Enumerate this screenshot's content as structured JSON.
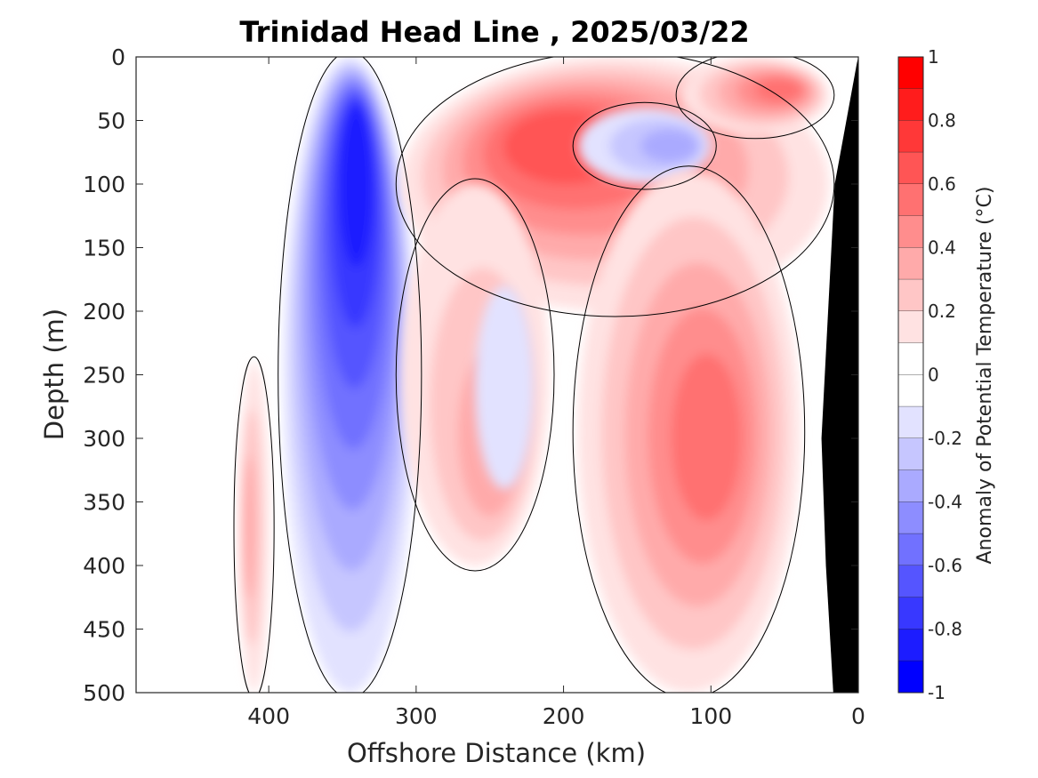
{
  "chart_data": {
    "type": "heatmap",
    "title": "Trinidad Head Line , 2025/03/22",
    "xlabel": "Offshore Distance (km)",
    "ylabel": "Depth (m)",
    "xlim": [
      490,
      0
    ],
    "ylim": [
      0,
      500
    ],
    "x_reversed": true,
    "y_reversed": true,
    "xticks": [
      400,
      300,
      200,
      100,
      0
    ],
    "yticks": [
      0,
      50,
      100,
      150,
      200,
      250,
      300,
      350,
      400,
      450,
      500
    ],
    "colorbar": {
      "label": "Anomaly of Potential Temperature (°C)",
      "range": [
        -1,
        1
      ],
      "ticks": [
        1,
        0.8,
        0.6,
        0.4,
        0.2,
        0,
        -0.2,
        -0.4,
        -0.6,
        -0.8,
        -1
      ],
      "tick_labels": [
        "1",
        "0.8",
        "0.6",
        "0.4",
        "0.2",
        "0",
        "-0.2",
        "-0.4",
        "-0.6",
        "-0.8",
        "-1"
      ],
      "levels": [
        {
          "min": 0.9,
          "max": 1.0,
          "color": "#ff0000"
        },
        {
          "min": 0.8,
          "max": 0.9,
          "color": "#ff1c1c"
        },
        {
          "min": 0.7,
          "max": 0.8,
          "color": "#ff3838"
        },
        {
          "min": 0.6,
          "max": 0.7,
          "color": "#ff5555"
        },
        {
          "min": 0.5,
          "max": 0.6,
          "color": "#ff7171"
        },
        {
          "min": 0.4,
          "max": 0.5,
          "color": "#ff8d8d"
        },
        {
          "min": 0.3,
          "max": 0.4,
          "color": "#ffaaaa"
        },
        {
          "min": 0.2,
          "max": 0.3,
          "color": "#ffc6c6"
        },
        {
          "min": 0.1,
          "max": 0.2,
          "color": "#ffe2e2"
        },
        {
          "min": 0.0,
          "max": 0.1,
          "color": "#ffffff"
        },
        {
          "min": -0.1,
          "max": 0.0,
          "color": "#ffffff"
        },
        {
          "min": -0.2,
          "max": -0.1,
          "color": "#e2e2ff"
        },
        {
          "min": -0.3,
          "max": -0.2,
          "color": "#c6c6ff"
        },
        {
          "min": -0.4,
          "max": -0.3,
          "color": "#aaaaff"
        },
        {
          "min": -0.5,
          "max": -0.4,
          "color": "#8d8dff"
        },
        {
          "min": -0.6,
          "max": -0.5,
          "color": "#7171ff"
        },
        {
          "min": -0.7,
          "max": -0.6,
          "color": "#5555ff"
        },
        {
          "min": -0.8,
          "max": -0.7,
          "color": "#3838ff"
        },
        {
          "min": -0.9,
          "max": -0.8,
          "color": "#1c1cff"
        },
        {
          "min": -1.0,
          "max": -0.9,
          "color": "#0000ff"
        }
      ]
    },
    "data_extent_km": [
      420,
      0
    ],
    "bathymetry_color": "#000000",
    "features": [
      {
        "name": "cold-core",
        "sign": "negative",
        "x_range_km": [
          300,
          390
        ],
        "depth_range_m": [
          0,
          500
        ],
        "peak_anomaly": -0.8,
        "peak_x_km": 340,
        "peak_depth_m": 80
      },
      {
        "name": "warm-upper-band",
        "sign": "positive",
        "x_range_km": [
          20,
          310
        ],
        "depth_range_m": [
          0,
          200
        ],
        "peak_anomaly": 0.6,
        "peak_x_km": 205,
        "peak_depth_m": 65
      },
      {
        "name": "warm-nearshore-surface",
        "sign": "positive",
        "x_range_km": [
          20,
          120
        ],
        "depth_range_m": [
          0,
          60
        ],
        "peak_anomaly": 0.5,
        "peak_x_km": 50,
        "peak_depth_m": 25
      },
      {
        "name": "cool-subsurface-lens",
        "sign": "negative",
        "x_range_km": [
          100,
          190
        ],
        "depth_range_m": [
          40,
          100
        ],
        "peak_anomaly": -0.3,
        "peak_x_km": 120,
        "peak_depth_m": 70
      },
      {
        "name": "warm-deep-core",
        "sign": "positive",
        "x_range_km": [
          40,
          190
        ],
        "depth_range_m": [
          90,
          500
        ],
        "peak_anomaly": 0.5,
        "peak_x_km": 100,
        "peak_depth_m": 300
      },
      {
        "name": "warm-mid-lobe",
        "sign": "positive",
        "x_range_km": [
          210,
          310
        ],
        "depth_range_m": [
          100,
          400
        ],
        "peak_anomaly": 0.3,
        "peak_x_km": 245,
        "peak_depth_m": 320
      },
      {
        "name": "cool-weak-tongue",
        "sign": "negative",
        "x_range_km": [
          220,
          260
        ],
        "depth_range_m": [
          180,
          340
        ],
        "peak_anomaly": -0.15,
        "peak_x_km": 240,
        "peak_depth_m": 250
      },
      {
        "name": "warm-offshore-edge",
        "sign": "positive",
        "x_range_km": [
          400,
          420
        ],
        "depth_range_m": [
          240,
          500
        ],
        "peak_anomaly": 0.3,
        "peak_x_km": 415,
        "peak_depth_m": 370
      }
    ]
  }
}
